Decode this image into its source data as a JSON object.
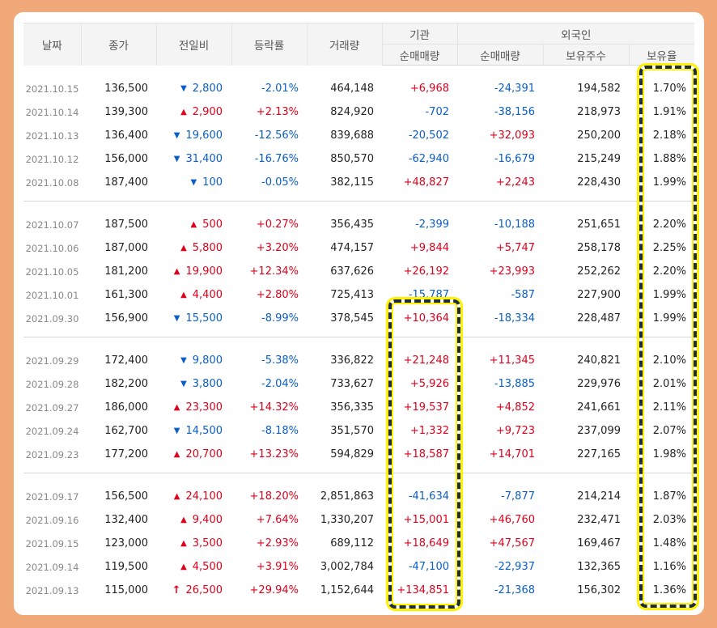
{
  "header": {
    "date": "날짜",
    "close": "종가",
    "change": "전일비",
    "rate": "등락률",
    "volume": "거래량",
    "institution": "기관",
    "foreign": "외국인",
    "inst_net": "순매매량",
    "foreign_net": "순매매량",
    "holdings": "보유주수",
    "ratio": "보유율"
  },
  "colors": {
    "up": "#e0001b",
    "down": "#0a5ec8",
    "highlight_border": "#1f2d3a",
    "highlight_glow": "#fff200"
  },
  "groups": [
    [
      {
        "date": "2021.10.15",
        "close": "136,500",
        "dir": "down",
        "change": "2,800",
        "rate": "-2.01%",
        "volume": "464,148",
        "inst": "+6,968",
        "foreign": "-24,391",
        "holdings": "194,582",
        "ratio": "1.70%"
      },
      {
        "date": "2021.10.14",
        "close": "139,300",
        "dir": "up",
        "change": "2,900",
        "rate": "+2.13%",
        "volume": "824,920",
        "inst": "-702",
        "foreign": "-38,156",
        "holdings": "218,973",
        "ratio": "1.91%"
      },
      {
        "date": "2021.10.13",
        "close": "136,400",
        "dir": "down",
        "change": "19,600",
        "rate": "-12.56%",
        "volume": "839,688",
        "inst": "-20,502",
        "foreign": "+32,093",
        "holdings": "250,200",
        "ratio": "2.18%"
      },
      {
        "date": "2021.10.12",
        "close": "156,000",
        "dir": "down",
        "change": "31,400",
        "rate": "-16.76%",
        "volume": "850,570",
        "inst": "-62,940",
        "foreign": "-16,679",
        "holdings": "215,249",
        "ratio": "1.88%"
      },
      {
        "date": "2021.10.08",
        "close": "187,400",
        "dir": "down",
        "change": "100",
        "rate": "-0.05%",
        "volume": "382,115",
        "inst": "+48,827",
        "foreign": "+2,243",
        "holdings": "228,430",
        "ratio": "1.99%"
      }
    ],
    [
      {
        "date": "2021.10.07",
        "close": "187,500",
        "dir": "up",
        "change": "500",
        "rate": "+0.27%",
        "volume": "356,435",
        "inst": "-2,399",
        "foreign": "-10,188",
        "holdings": "251,651",
        "ratio": "2.20%"
      },
      {
        "date": "2021.10.06",
        "close": "187,000",
        "dir": "up",
        "change": "5,800",
        "rate": "+3.20%",
        "volume": "474,157",
        "inst": "+9,844",
        "foreign": "+5,747",
        "holdings": "258,178",
        "ratio": "2.25%"
      },
      {
        "date": "2021.10.05",
        "close": "181,200",
        "dir": "up",
        "change": "19,900",
        "rate": "+12.34%",
        "volume": "637,626",
        "inst": "+26,192",
        "foreign": "+23,993",
        "holdings": "252,262",
        "ratio": "2.20%"
      },
      {
        "date": "2021.10.01",
        "close": "161,300",
        "dir": "up",
        "change": "4,400",
        "rate": "+2.80%",
        "volume": "725,413",
        "inst": "-15,787",
        "foreign": "-587",
        "holdings": "227,900",
        "ratio": "1.99%"
      },
      {
        "date": "2021.09.30",
        "close": "156,900",
        "dir": "down",
        "change": "15,500",
        "rate": "-8.99%",
        "volume": "378,545",
        "inst": "+10,364",
        "foreign": "-18,334",
        "holdings": "228,487",
        "ratio": "1.99%"
      }
    ],
    [
      {
        "date": "2021.09.29",
        "close": "172,400",
        "dir": "down",
        "change": "9,800",
        "rate": "-5.38%",
        "volume": "336,822",
        "inst": "+21,248",
        "foreign": "+11,345",
        "holdings": "240,821",
        "ratio": "2.10%"
      },
      {
        "date": "2021.09.28",
        "close": "182,200",
        "dir": "down",
        "change": "3,800",
        "rate": "-2.04%",
        "volume": "733,627",
        "inst": "+5,926",
        "foreign": "-13,885",
        "holdings": "229,976",
        "ratio": "2.01%"
      },
      {
        "date": "2021.09.27",
        "close": "186,000",
        "dir": "up",
        "change": "23,300",
        "rate": "+14.32%",
        "volume": "356,335",
        "inst": "+19,537",
        "foreign": "+4,852",
        "holdings": "241,661",
        "ratio": "2.11%"
      },
      {
        "date": "2021.09.24",
        "close": "162,700",
        "dir": "down",
        "change": "14,500",
        "rate": "-8.18%",
        "volume": "351,570",
        "inst": "+1,332",
        "foreign": "+9,723",
        "holdings": "237,099",
        "ratio": "2.07%"
      },
      {
        "date": "2021.09.23",
        "close": "177,200",
        "dir": "up",
        "change": "20,700",
        "rate": "+13.23%",
        "volume": "594,829",
        "inst": "+18,587",
        "foreign": "+14,701",
        "holdings": "227,165",
        "ratio": "1.98%"
      }
    ],
    [
      {
        "date": "2021.09.17",
        "close": "156,500",
        "dir": "up",
        "change": "24,100",
        "rate": "+18.20%",
        "volume": "2,851,863",
        "inst": "-41,634",
        "foreign": "-7,877",
        "holdings": "214,214",
        "ratio": "1.87%"
      },
      {
        "date": "2021.09.16",
        "close": "132,400",
        "dir": "up",
        "change": "9,400",
        "rate": "+7.64%",
        "volume": "1,330,207",
        "inst": "+15,001",
        "foreign": "+46,760",
        "holdings": "232,471",
        "ratio": "2.03%"
      },
      {
        "date": "2021.09.15",
        "close": "123,000",
        "dir": "up",
        "change": "3,500",
        "rate": "+2.93%",
        "volume": "689,112",
        "inst": "+18,649",
        "foreign": "+47,567",
        "holdings": "169,467",
        "ratio": "1.48%"
      },
      {
        "date": "2021.09.14",
        "close": "119,500",
        "dir": "up",
        "change": "4,500",
        "rate": "+3.91%",
        "volume": "3,002,784",
        "inst": "-47,100",
        "foreign": "-22,937",
        "holdings": "132,365",
        "ratio": "1.16%"
      },
      {
        "date": "2021.09.13",
        "close": "115,000",
        "dir": "limit-up",
        "change": "26,500",
        "rate": "+29.94%",
        "volume": "1,152,644",
        "inst": "+134,851",
        "foreign": "-21,368",
        "holdings": "156,302",
        "ratio": "1.36%"
      }
    ]
  ]
}
